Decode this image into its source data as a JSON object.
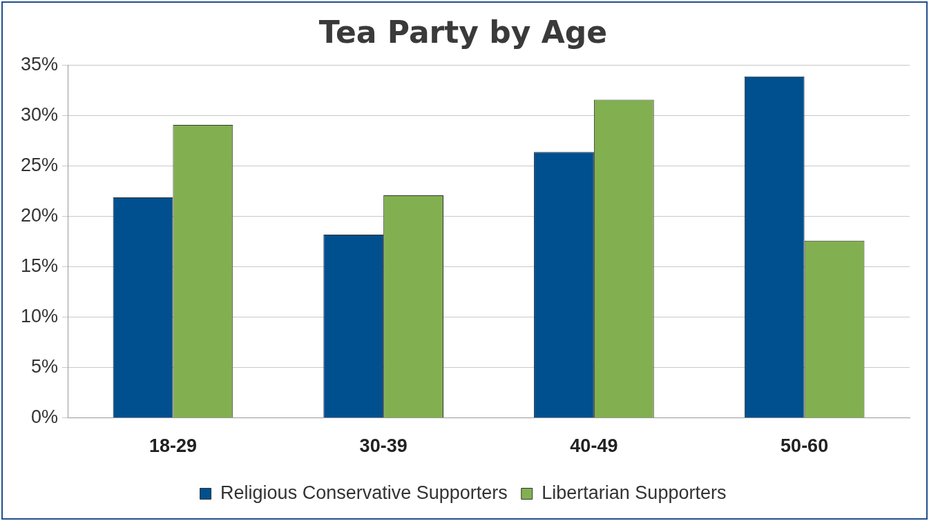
{
  "chart_data": {
    "type": "bar",
    "title": "Tea Party by Age",
    "categories": [
      "18-29",
      "30-39",
      "40-49",
      "50-60"
    ],
    "series": [
      {
        "name": "Religious Conservative Supporters",
        "color": "#00508f",
        "values": [
          21.9,
          18.2,
          26.4,
          33.9
        ]
      },
      {
        "name": "Libertarian Supporters",
        "color": "#82b050",
        "values": [
          29.1,
          22.1,
          31.6,
          17.6
        ]
      }
    ],
    "ylim": [
      0,
      35
    ],
    "yticks": [
      {
        "value": 0,
        "label": "0%"
      },
      {
        "value": 5,
        "label": "5%"
      },
      {
        "value": 10,
        "label": "10%"
      },
      {
        "value": 15,
        "label": "15%"
      },
      {
        "value": 20,
        "label": "20%"
      },
      {
        "value": 25,
        "label": "25%"
      },
      {
        "value": 30,
        "label": "30%"
      },
      {
        "value": 35,
        "label": "35%"
      }
    ],
    "grid": "y",
    "legend": "bottom"
  }
}
